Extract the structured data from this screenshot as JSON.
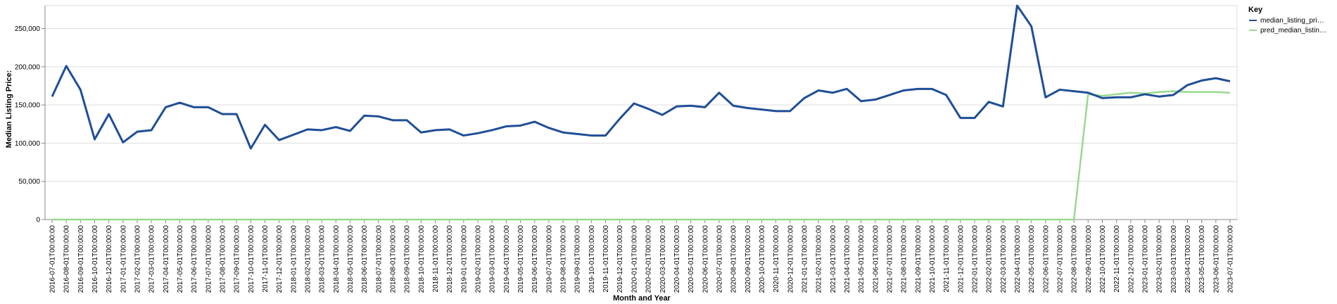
{
  "chart_data": {
    "type": "line",
    "xlabel": "Month and Year",
    "ylabel": "Median Listing Price:",
    "ylim": [
      0,
      280000
    ],
    "yticks": [
      0,
      50000,
      100000,
      150000,
      200000,
      250000
    ],
    "ytick_labels": [
      "0",
      "50,000",
      "100,000",
      "150,000",
      "200,000",
      "250,000"
    ],
    "grid": "horizontal",
    "legend_title": "Key",
    "legend_position": "top-right",
    "x": [
      "2016-07-01T00:00:00",
      "2016-08-01T00:00:00",
      "2016-09-01T00:00:00",
      "2016-10-01T00:00:00",
      "2016-12-01T00:00:00",
      "2017-01-01T00:00:00",
      "2017-02-01T00:00:00",
      "2017-03-01T00:00:00",
      "2017-04-01T00:00:00",
      "2017-05-01T00:00:00",
      "2017-06-01T00:00:00",
      "2017-07-01T00:00:00",
      "2017-08-01T00:00:00",
      "2017-09-01T00:00:00",
      "2017-10-01T00:00:00",
      "2017-11-01T00:00:00",
      "2017-12-01T00:00:00",
      "2018-01-01T00:00:00",
      "2018-02-01T00:00:00",
      "2018-03-01T00:00:00",
      "2018-04-01T00:00:00",
      "2018-05-01T00:00:00",
      "2018-06-01T00:00:00",
      "2018-07-01T00:00:00",
      "2018-08-01T00:00:00",
      "2018-09-01T00:00:00",
      "2018-10-01T00:00:00",
      "2018-11-01T00:00:00",
      "2018-12-01T00:00:00",
      "2019-01-01T00:00:00",
      "2019-02-01T00:00:00",
      "2019-03-01T00:00:00",
      "2019-04-01T00:00:00",
      "2019-05-01T00:00:00",
      "2019-06-01T00:00:00",
      "2019-07-01T00:00:00",
      "2019-08-01T00:00:00",
      "2019-09-01T00:00:00",
      "2019-10-01T00:00:00",
      "2019-11-01T00:00:00",
      "2019-12-01T00:00:00",
      "2020-01-01T00:00:00",
      "2020-02-01T00:00:00",
      "2020-03-01T00:00:00",
      "2020-04-01T00:00:00",
      "2020-05-01T00:00:00",
      "2020-06-01T00:00:00",
      "2020-07-01T00:00:00",
      "2020-08-01T00:00:00",
      "2020-09-01T00:00:00",
      "2020-10-01T00:00:00",
      "2020-11-01T00:00:00",
      "2020-12-01T00:00:00",
      "2021-01-01T00:00:00",
      "2021-02-01T00:00:00",
      "2021-03-01T00:00:00",
      "2021-04-01T00:00:00",
      "2021-05-01T00:00:00",
      "2021-06-01T00:00:00",
      "2021-07-01T00:00:00",
      "2021-08-01T00:00:00",
      "2021-09-01T00:00:00",
      "2021-10-01T00:00:00",
      "2021-11-01T00:00:00",
      "2021-12-01T00:00:00",
      "2022-01-01T00:00:00",
      "2022-02-01T00:00:00",
      "2022-03-01T00:00:00",
      "2022-04-01T00:00:00",
      "2022-05-01T00:00:00",
      "2022-06-01T00:00:00",
      "2022-07-01T00:00:00",
      "2022-08-01T00:00:00",
      "2022-09-01T00:00:00",
      "2022-10-01T00:00:00",
      "2022-11-01T00:00:00",
      "2022-12-01T00:00:00",
      "2023-01-01T00:00:00",
      "2023-02-01T00:00:00",
      "2023-03-01T00:00:00",
      "2023-04-01T00:00:00",
      "2023-05-01T00:00:00",
      "2023-06-01T00:00:00",
      "2023-07-01T00:00:00"
    ],
    "series": [
      {
        "name": "median_listing_pri…",
        "color": "#1f4e96",
        "values": [
          161000,
          201000,
          170000,
          105000,
          138000,
          101000,
          115000,
          117000,
          147000,
          153000,
          147000,
          147000,
          138000,
          138000,
          93000,
          124000,
          104000,
          111000,
          118000,
          117000,
          121000,
          116000,
          136000,
          135000,
          130000,
          130000,
          114000,
          117000,
          118000,
          110000,
          113000,
          117000,
          122000,
          123000,
          128000,
          120000,
          114000,
          112000,
          110000,
          110000,
          132000,
          152000,
          145000,
          137000,
          148000,
          149000,
          147000,
          166000,
          149000,
          146000,
          144000,
          142000,
          142000,
          159000,
          169000,
          166000,
          171000,
          155000,
          157000,
          163000,
          169000,
          171000,
          171000,
          163000,
          133000,
          133000,
          154000,
          148000,
          280000,
          253000,
          160000,
          170000,
          168000,
          166000,
          159000,
          160000,
          160000,
          164000,
          161000,
          163000,
          176000,
          182000,
          185000,
          181000
        ]
      },
      {
        "name": "pred_median_listin…",
        "color": "#98d98e",
        "values": [
          0,
          0,
          0,
          0,
          0,
          0,
          0,
          0,
          0,
          0,
          0,
          0,
          0,
          0,
          0,
          0,
          0,
          0,
          0,
          0,
          0,
          0,
          0,
          0,
          0,
          0,
          0,
          0,
          0,
          0,
          0,
          0,
          0,
          0,
          0,
          0,
          0,
          0,
          0,
          0,
          0,
          0,
          0,
          0,
          0,
          0,
          0,
          0,
          0,
          0,
          0,
          0,
          0,
          0,
          0,
          0,
          0,
          0,
          0,
          0,
          0,
          0,
          0,
          0,
          0,
          0,
          0,
          0,
          0,
          0,
          0,
          0,
          0,
          164000,
          162000,
          164000,
          166000,
          165000,
          167000,
          168000,
          167000,
          167000,
          167000,
          166000
        ]
      }
    ]
  }
}
